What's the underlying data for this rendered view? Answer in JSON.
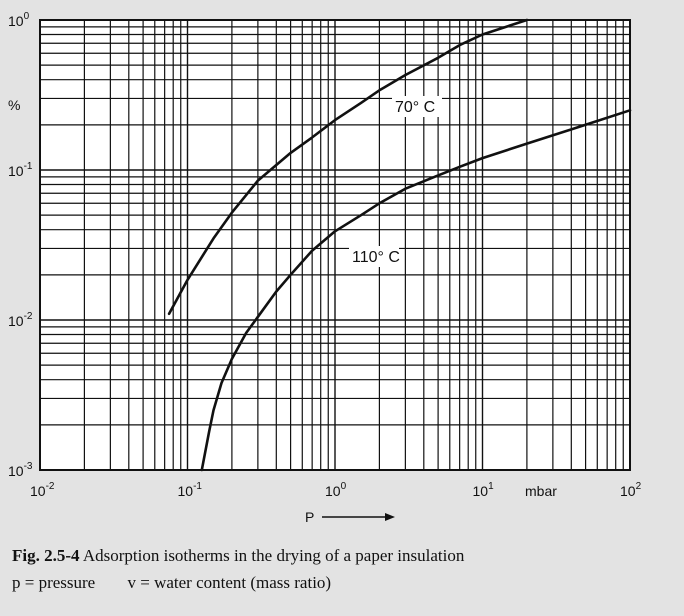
{
  "chart_data": {
    "type": "line",
    "xscale": "log",
    "yscale": "log",
    "xlim": [
      0.01,
      100
    ],
    "ylim": [
      0.001,
      1
    ],
    "grid": true,
    "x_ticks": [
      {
        "value": 0.01,
        "base": "10",
        "exp": "-2"
      },
      {
        "value": 0.1,
        "base": "10",
        "exp": "-1"
      },
      {
        "value": 1,
        "base": "10",
        "exp": "0"
      },
      {
        "value": 10,
        "base": "10",
        "exp": "1"
      },
      {
        "value": 100,
        "base": "10",
        "exp": "2"
      }
    ],
    "y_ticks": [
      {
        "value": 0.001,
        "base": "10",
        "exp": "-3"
      },
      {
        "value": 0.01,
        "base": "10",
        "exp": "-2"
      },
      {
        "value": 0.1,
        "base": "10",
        "exp": "-1"
      },
      {
        "value": 1,
        "base": "10",
        "exp": "0"
      }
    ],
    "xlabel": "P",
    "x_unit": "mbar",
    "y_unit": "%",
    "series": [
      {
        "name": "70° C",
        "x": [
          0.075,
          0.1,
          0.15,
          0.2,
          0.3,
          0.4,
          0.5,
          0.7,
          1,
          1.5,
          2,
          3,
          5,
          7,
          10,
          20
        ],
        "y": [
          0.011,
          0.0185,
          0.035,
          0.052,
          0.085,
          0.108,
          0.13,
          0.165,
          0.215,
          0.28,
          0.34,
          0.43,
          0.56,
          0.68,
          0.8,
          1.0
        ]
      },
      {
        "name": "110° C",
        "x": [
          0.125,
          0.14,
          0.15,
          0.17,
          0.2,
          0.25,
          0.3,
          0.4,
          0.5,
          0.7,
          1,
          1.5,
          2,
          3,
          5,
          7,
          10,
          20,
          50,
          100
        ],
        "y": [
          0.001,
          0.0018,
          0.0025,
          0.0038,
          0.0055,
          0.0082,
          0.0105,
          0.0155,
          0.02,
          0.029,
          0.039,
          0.05,
          0.06,
          0.075,
          0.092,
          0.105,
          0.12,
          0.15,
          0.2,
          0.25
        ]
      }
    ]
  },
  "caption": {
    "figure_number": "Fig. 2.5-4",
    "title": "Adsorption isotherms in the drying of a paper insulation",
    "legend_p": "p = pressure",
    "legend_v": "v = water content (mass ratio)"
  }
}
